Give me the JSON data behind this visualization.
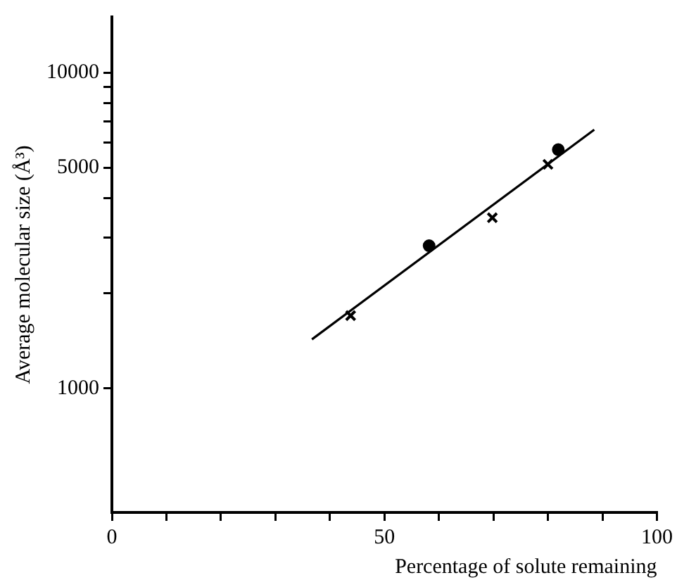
{
  "chart_data": {
    "type": "scatter",
    "xlabel": "Percentage of solute remaining",
    "ylabel": "Average molecular size (Å³)",
    "log": "y",
    "grid": false,
    "legend": false,
    "xlim": [
      0,
      100
    ],
    "xticks": [
      0,
      {
        "value": 10,
        "label": null
      },
      {
        "value": 20,
        "label": null
      },
      {
        "value": 30,
        "label": null
      },
      {
        "value": 40,
        "label": null
      },
      50,
      {
        "value": 60,
        "label": null
      },
      {
        "value": 70,
        "label": null
      },
      {
        "value": 80,
        "label": null
      },
      {
        "value": 90,
        "label": null
      },
      100
    ],
    "ylim": [
      405,
      15000
    ],
    "yticks": [
      1000,
      {
        "value": 2000,
        "label": null
      },
      {
        "value": 3000,
        "label": null
      },
      {
        "value": 4000,
        "label": null
      },
      5000,
      {
        "value": 6000,
        "label": null
      },
      {
        "value": 7000,
        "label": null
      },
      {
        "value": 8000,
        "label": null
      },
      {
        "value": 9000,
        "label": null
      },
      10000
    ],
    "series": [
      {
        "type": "scatter",
        "marker": "cross",
        "color": "#000000",
        "x": [
          43.8,
          69.8,
          80
        ],
        "values": [
          1700,
          3470,
          5120
        ]
      },
      {
        "type": "scatter",
        "marker": "circle",
        "color": "#000000",
        "x": [
          58.2,
          81.9
        ],
        "values": [
          2830,
          5700
        ]
      },
      {
        "type": "line",
        "marker": "none",
        "color": "#000000",
        "x": [
          36.7,
          88.5
        ],
        "values": [
          1430,
          6590
        ]
      }
    ]
  }
}
